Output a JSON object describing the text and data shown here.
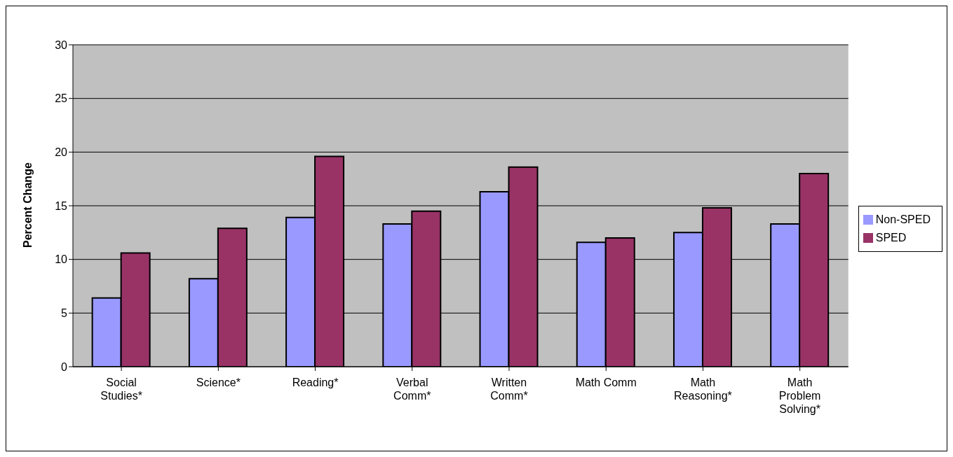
{
  "chart_data": {
    "type": "bar",
    "ylabel": "Percent Change",
    "categories": [
      "Social Studies*",
      "Science*",
      "Reading*",
      "Verbal Comm*",
      "Written Comm*",
      "Math Comm",
      "Math Reasoning*",
      "Math Problem Solving*"
    ],
    "series": [
      {
        "name": "Non-SPED",
        "color": "#9999ff",
        "values": [
          6.4,
          8.2,
          13.9,
          13.3,
          16.3,
          11.6,
          12.5,
          13.3
        ]
      },
      {
        "name": "SPED",
        "color": "#993366",
        "values": [
          10.6,
          12.9,
          19.6,
          14.5,
          18.6,
          12.0,
          14.8,
          18.0
        ]
      }
    ],
    "ylim": [
      0,
      30
    ],
    "yticks": [
      0,
      5,
      10,
      15,
      20,
      25,
      30
    ],
    "grid": "y",
    "legend": "right"
  }
}
